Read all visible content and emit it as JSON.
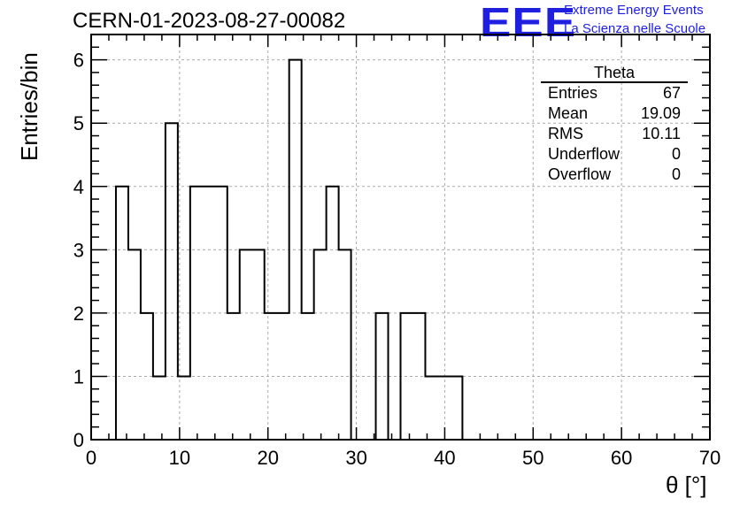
{
  "page_title": "CERN-01-2023-08-27-00082",
  "logo": {
    "text": "EEE",
    "line1": "Extreme Energy Events",
    "line2": "La Scienza nelle Scuole",
    "color": "#1f1fe0"
  },
  "stats": {
    "title": "Theta",
    "rows": [
      {
        "label": "Entries",
        "value": "67"
      },
      {
        "label": "Mean",
        "value": "19.09"
      },
      {
        "label": "RMS",
        "value": "10.11"
      },
      {
        "label": "Underflow",
        "value": "0"
      },
      {
        "label": "Overflow",
        "value": "0"
      }
    ]
  },
  "chart_data": {
    "type": "bar",
    "style": "step-histogram",
    "title": "CERN-01-2023-08-27-00082",
    "xlabel": "θ [°]",
    "ylabel": "Entries/bin",
    "xlim": [
      0,
      70
    ],
    "ylim": [
      0,
      6.4
    ],
    "xticks": [
      0,
      10,
      20,
      30,
      40,
      50,
      60,
      70
    ],
    "yticks": [
      0,
      1,
      2,
      3,
      4,
      5,
      6
    ],
    "grid": true,
    "bin_width": 1.4,
    "bin_start": 2.8,
    "values": [
      4,
      3,
      2,
      1,
      5,
      1,
      4,
      4,
      4,
      2,
      3,
      3,
      2,
      2,
      6,
      2,
      3,
      4,
      3,
      0,
      0,
      2,
      0,
      2,
      2,
      1,
      1,
      1
    ]
  }
}
